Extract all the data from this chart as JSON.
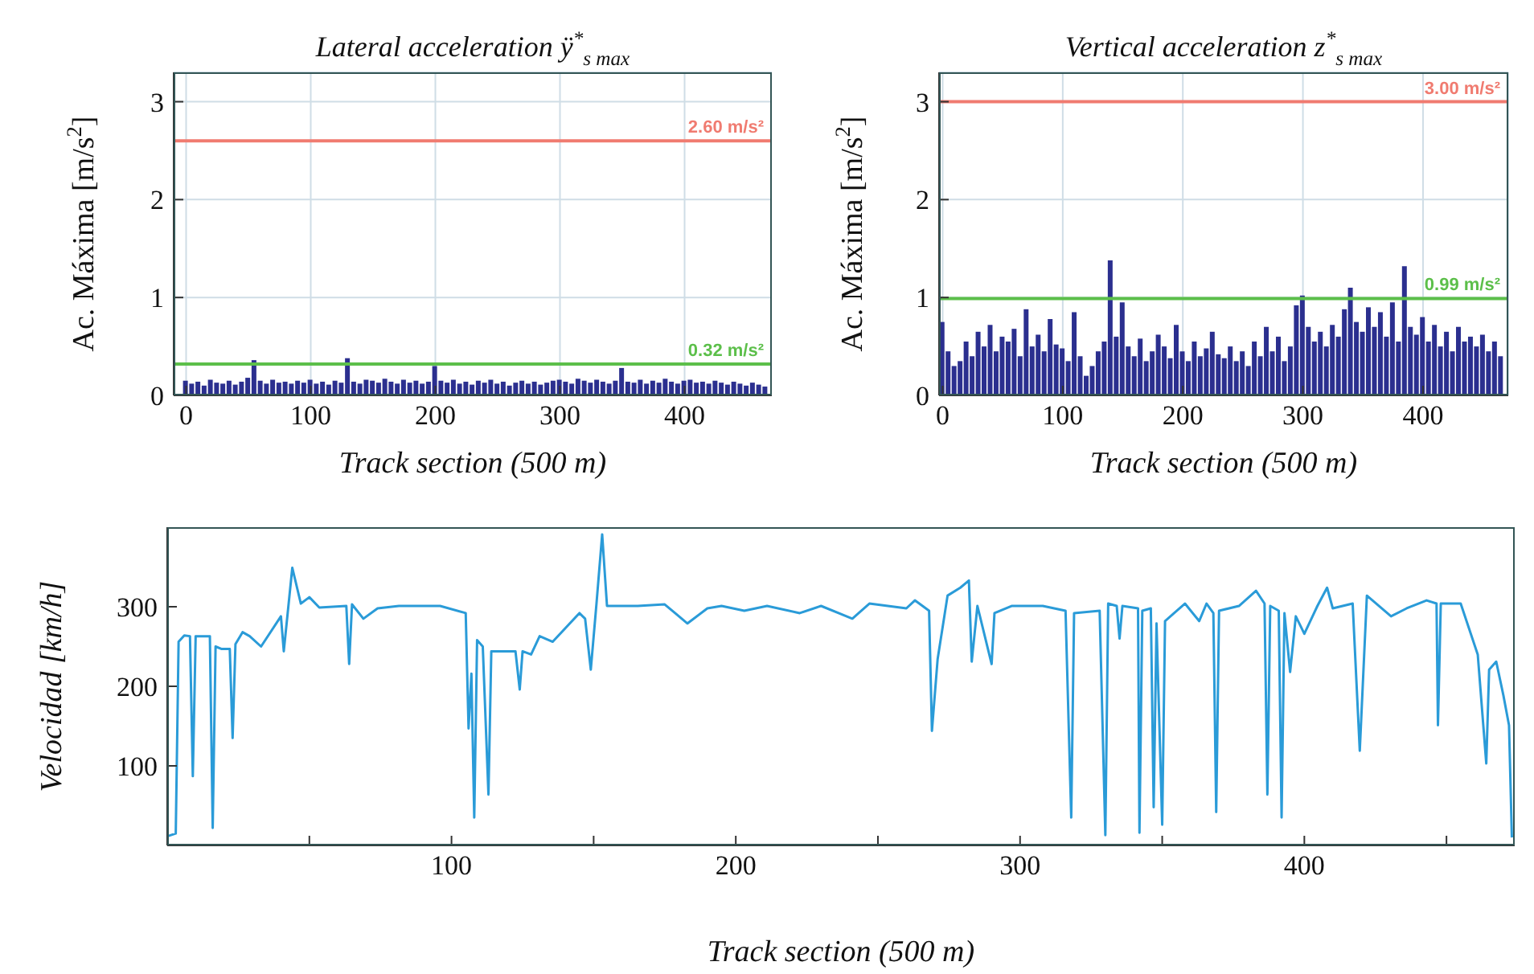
{
  "chart_data": [
    {
      "type": "bar",
      "title": "Lateral acceleration ÿ$^{*}$$_{s max}$",
      "xlabel": "Track section (500 m)",
      "ylabel": "Ac. Máxima [m/s$^{2}$]",
      "x": [
        0,
        5,
        10,
        15,
        20,
        25,
        30,
        35,
        40,
        45,
        50,
        55,
        60,
        65,
        70,
        75,
        80,
        85,
        90,
        95,
        100,
        105,
        110,
        115,
        120,
        125,
        130,
        135,
        140,
        145,
        150,
        155,
        160,
        165,
        170,
        175,
        180,
        185,
        190,
        195,
        200,
        205,
        210,
        215,
        220,
        225,
        230,
        235,
        240,
        245,
        250,
        255,
        260,
        265,
        270,
        275,
        280,
        285,
        290,
        295,
        300,
        305,
        310,
        315,
        320,
        325,
        330,
        335,
        340,
        345,
        350,
        355,
        360,
        365,
        370,
        375,
        380,
        385,
        390,
        395,
        400,
        405,
        410,
        415,
        420,
        425,
        430,
        435,
        440,
        445,
        450,
        455,
        460,
        465
      ],
      "series": [
        {
          "color": "#2b2f8f",
          "values": [
            0.15,
            0.12,
            0.14,
            0.1,
            0.16,
            0.13,
            0.12,
            0.15,
            0.11,
            0.14,
            0.18,
            0.36,
            0.15,
            0.12,
            0.16,
            0.13,
            0.14,
            0.12,
            0.15,
            0.13,
            0.16,
            0.12,
            0.14,
            0.11,
            0.15,
            0.13,
            0.38,
            0.14,
            0.12,
            0.16,
            0.15,
            0.13,
            0.17,
            0.14,
            0.12,
            0.16,
            0.13,
            0.15,
            0.12,
            0.14,
            0.3,
            0.15,
            0.13,
            0.16,
            0.12,
            0.14,
            0.11,
            0.15,
            0.13,
            0.16,
            0.12,
            0.14,
            0.1,
            0.13,
            0.15,
            0.12,
            0.14,
            0.11,
            0.13,
            0.15,
            0.16,
            0.14,
            0.12,
            0.17,
            0.15,
            0.13,
            0.16,
            0.14,
            0.12,
            0.15,
            0.28,
            0.14,
            0.13,
            0.16,
            0.12,
            0.15,
            0.13,
            0.17,
            0.14,
            0.12,
            0.15,
            0.16,
            0.13,
            0.14,
            0.12,
            0.15,
            0.13,
            0.11,
            0.14,
            0.12,
            0.1,
            0.13,
            0.11,
            0.09
          ]
        }
      ],
      "xlim": [
        -10,
        470
      ],
      "xticks": [
        0,
        100,
        200,
        300,
        400
      ],
      "ylim": [
        0,
        3.3
      ],
      "yticks": [
        0,
        1,
        2,
        3
      ],
      "grid": true,
      "ref_lines": [
        {
          "axis": "y",
          "value": 2.6,
          "label": "2.60 m/s²",
          "color": "#f07b70"
        },
        {
          "axis": "y",
          "value": 0.32,
          "label": "0.32 m/s²",
          "color": "#5cbf4a"
        }
      ]
    },
    {
      "type": "bar",
      "title": "Vertical acceleration z$^{*}$$_{s max}$",
      "xlabel": "Track section (500 m)",
      "ylabel": "Ac. Máxima [m/s$^{2}$]",
      "x": [
        0,
        5,
        10,
        15,
        20,
        25,
        30,
        35,
        40,
        45,
        50,
        55,
        60,
        65,
        70,
        75,
        80,
        85,
        90,
        95,
        100,
        105,
        110,
        115,
        120,
        125,
        130,
        135,
        140,
        145,
        150,
        155,
        160,
        165,
        170,
        175,
        180,
        185,
        190,
        195,
        200,
        205,
        210,
        215,
        220,
        225,
        230,
        235,
        240,
        245,
        250,
        255,
        260,
        265,
        270,
        275,
        280,
        285,
        290,
        295,
        300,
        305,
        310,
        315,
        320,
        325,
        330,
        335,
        340,
        345,
        350,
        355,
        360,
        365,
        370,
        375,
        380,
        385,
        390,
        395,
        400,
        405,
        410,
        415,
        420,
        425,
        430,
        435,
        440,
        445,
        450,
        455,
        460,
        465
      ],
      "series": [
        {
          "color": "#2b2f8f",
          "values": [
            0.75,
            0.45,
            0.3,
            0.35,
            0.55,
            0.4,
            0.65,
            0.5,
            0.72,
            0.45,
            0.6,
            0.55,
            0.68,
            0.4,
            0.88,
            0.5,
            0.62,
            0.45,
            0.78,
            0.52,
            0.48,
            0.35,
            0.85,
            0.4,
            0.2,
            0.3,
            0.45,
            0.55,
            1.38,
            0.6,
            0.95,
            0.5,
            0.4,
            0.58,
            0.35,
            0.45,
            0.62,
            0.5,
            0.38,
            0.72,
            0.45,
            0.35,
            0.55,
            0.4,
            0.48,
            0.65,
            0.42,
            0.38,
            0.5,
            0.35,
            0.45,
            0.3,
            0.55,
            0.4,
            0.7,
            0.45,
            0.6,
            0.35,
            0.5,
            0.92,
            1.02,
            0.7,
            0.55,
            0.65,
            0.5,
            0.72,
            0.6,
            0.88,
            1.1,
            0.75,
            0.65,
            0.9,
            0.7,
            0.85,
            0.6,
            0.95,
            0.55,
            1.32,
            0.7,
            0.62,
            0.8,
            0.55,
            0.72,
            0.5,
            0.65,
            0.45,
            0.7,
            0.55,
            0.6,
            0.5,
            0.62,
            0.45,
            0.55,
            0.4
          ]
        }
      ],
      "xlim": [
        -3,
        471
      ],
      "xticks": [
        0,
        100,
        200,
        300,
        400
      ],
      "ylim": [
        0,
        3.3
      ],
      "yticks": [
        0,
        1,
        2,
        3
      ],
      "grid": true,
      "ref_lines": [
        {
          "axis": "y",
          "value": 3.0,
          "label": "3.00 m/s²",
          "color": "#f07b70"
        },
        {
          "axis": "y",
          "value": 0.99,
          "label": "0.99 m/s²",
          "color": "#5cbf4a"
        }
      ]
    },
    {
      "type": "line",
      "xlabel": "Track section (500 m)",
      "ylabel": "Velocidad [km/h]",
      "marker": "none",
      "line_style": "solid",
      "grid": false,
      "series": [
        {
          "color": "#2a9bd8",
          "x": [
            0.5,
            3,
            4,
            6,
            8,
            9,
            10,
            15,
            16,
            17,
            19,
            22,
            23,
            24,
            26.5,
            29,
            33,
            40,
            41,
            44,
            47,
            50,
            53.5,
            63,
            64,
            65,
            69,
            74,
            81.5,
            96,
            105,
            106,
            107,
            108,
            109,
            111,
            113,
            114,
            122.5,
            124,
            125,
            128,
            131,
            135.6,
            145,
            147,
            149,
            151,
            153,
            154.7,
            165.5,
            175,
            183,
            190,
            195,
            203,
            211,
            222.5,
            230,
            241,
            247,
            260,
            263,
            268,
            269,
            271,
            274.5,
            279,
            282,
            283,
            285,
            290,
            291,
            297,
            308,
            316,
            318,
            319,
            328,
            330,
            331,
            334,
            335,
            336,
            341.5,
            342,
            343,
            346,
            347,
            348,
            350,
            351,
            358,
            363,
            365.6,
            368,
            369,
            370,
            377,
            383,
            386,
            387,
            388,
            391,
            392,
            393,
            395,
            397,
            400,
            404.6,
            408,
            410,
            417,
            419.5,
            422,
            430.5,
            436,
            443,
            446.5,
            447,
            448,
            455,
            461,
            464,
            465,
            467.5,
            470,
            472,
            473
          ],
          "values": [
            12,
            15,
            256,
            264,
            263,
            87,
            263,
            263,
            22,
            250,
            247,
            247,
            135,
            253,
            268,
            263,
            250,
            288,
            244,
            349,
            304,
            312,
            299,
            301,
            228,
            303,
            285,
            298,
            301,
            301,
            292,
            147,
            216,
            35,
            258,
            250,
            64,
            244,
            244,
            196,
            244,
            240,
            263,
            256,
            292,
            285,
            221,
            304,
            391,
            301,
            301,
            303,
            279,
            298,
            301,
            295,
            301,
            292,
            301,
            285,
            304,
            298,
            308,
            295,
            144,
            234,
            314,
            324,
            333,
            231,
            301,
            228,
            292,
            301,
            301,
            295,
            35,
            292,
            295,
            13,
            304,
            301,
            260,
            301,
            298,
            16,
            295,
            298,
            48,
            279,
            26,
            282,
            304,
            282,
            304,
            292,
            42,
            295,
            301,
            320,
            304,
            64,
            301,
            295,
            35,
            292,
            218,
            288,
            266,
            301,
            324,
            298,
            304,
            119,
            314,
            288,
            298,
            308,
            304,
            151,
            304,
            304,
            240,
            103,
            221,
            231,
            189,
            151,
            10
          ]
        }
      ],
      "xlim": [
        0,
        474
      ],
      "xticks": [
        {
          "value": 50,
          "label": null
        },
        100,
        {
          "value": 150,
          "label": null
        },
        200,
        {
          "value": 250,
          "label": null
        },
        300,
        {
          "value": 350,
          "label": null
        },
        400,
        {
          "value": 450,
          "label": null
        }
      ],
      "ylim": [
        0,
        400
      ],
      "yticks": [
        100,
        200,
        300
      ]
    }
  ]
}
